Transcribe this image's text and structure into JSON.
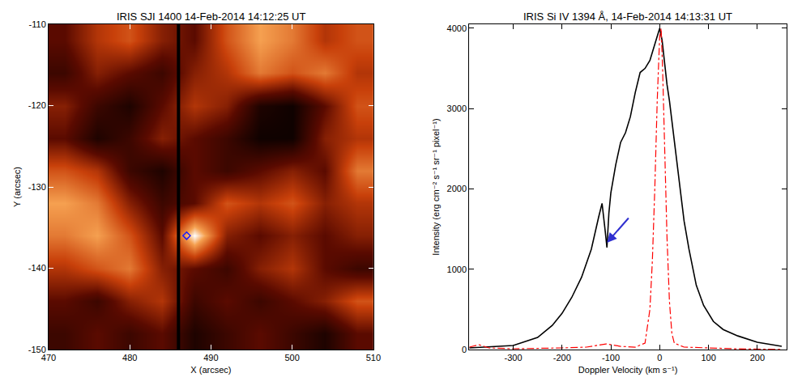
{
  "chart_data": [
    {
      "type": "heatmap",
      "title": "IRIS SJI 1400 14-Feb-2014 14:12:25 UT",
      "x_label": "X (arcsec)",
      "y_label": "Y (arcsec)",
      "xlim": [
        470,
        510
      ],
      "ylim": [
        -150,
        -110
      ],
      "xticks": [
        470,
        480,
        490,
        500,
        510
      ],
      "yticks": [
        -150,
        -140,
        -130,
        -120,
        -110
      ],
      "x": [
        472,
        476,
        480,
        484,
        488,
        492,
        496,
        500,
        504,
        508
      ],
      "y": [
        -148,
        -144,
        -140,
        -136,
        -132,
        -128,
        -124,
        -120,
        -116,
        -112
      ],
      "z": [
        [
          0.2,
          0.3,
          0.2,
          0.3,
          0.1,
          0.2,
          0.3,
          0.2,
          0.1,
          0.3
        ],
        [
          0.3,
          0.2,
          0.4,
          0.5,
          0.2,
          0.3,
          0.2,
          0.3,
          0.4,
          0.6
        ],
        [
          0.5,
          0.6,
          0.7,
          0.4,
          0.3,
          0.2,
          0.4,
          0.5,
          0.3,
          0.2
        ],
        [
          0.7,
          0.8,
          0.6,
          0.3,
          1.0,
          0.4,
          0.3,
          0.4,
          0.3,
          0.4
        ],
        [
          0.8,
          0.7,
          0.4,
          0.2,
          0.3,
          0.6,
          0.5,
          0.6,
          0.4,
          0.5
        ],
        [
          0.6,
          0.5,
          0.2,
          0.1,
          0.3,
          0.2,
          0.3,
          0.4,
          0.3,
          0.7
        ],
        [
          0.3,
          0.1,
          0.2,
          0.4,
          0.3,
          0.2,
          0.05,
          0.05,
          0.4,
          0.5
        ],
        [
          0.4,
          0.2,
          0.1,
          0.3,
          0.5,
          0.4,
          0.1,
          0.05,
          0.3,
          0.6
        ],
        [
          0.2,
          0.4,
          0.3,
          0.2,
          0.4,
          0.5,
          0.7,
          0.6,
          0.7,
          0.5
        ],
        [
          0.3,
          0.5,
          0.6,
          0.4,
          0.3,
          0.6,
          0.8,
          0.7,
          0.5,
          0.6
        ]
      ],
      "zlim": [
        0,
        1
      ],
      "slit_x": 486,
      "points": {
        "x": [
          487
        ],
        "y": [
          -136
        ],
        "color": "#1a1aff",
        "marker": "diamond-open"
      }
    },
    {
      "type": "line",
      "title": "IRIS Si IV 1394 Å, 14-Feb-2014 14:13:31 UT",
      "x_label": "Doppler Velocity (km s⁻¹)",
      "y_label": "Intensity (erg cm⁻² s⁻¹ sr⁻¹ pixel⁻¹)",
      "xlim": [
        -390,
        260
      ],
      "ylim": [
        0,
        4050
      ],
      "xticks": [
        -300,
        -200,
        -100,
        0,
        100,
        200
      ],
      "yticks": [
        0,
        1000,
        2000,
        3000,
        4000
      ],
      "series": [
        {
          "color": "#000000",
          "line_style": "solid",
          "x": [
            -390,
            -300,
            -250,
            -220,
            -200,
            -180,
            -160,
            -140,
            -125,
            -118,
            -112,
            -108,
            -104,
            -100,
            -90,
            -80,
            -70,
            -60,
            -50,
            -40,
            -30,
            -20,
            -10,
            0,
            5,
            10,
            15,
            20,
            30,
            40,
            50,
            60,
            75,
            90,
            110,
            130,
            160,
            200,
            250
          ],
          "values": [
            20,
            50,
            150,
            300,
            450,
            650,
            900,
            1250,
            1650,
            1820,
            1500,
            1270,
            1700,
            1950,
            2300,
            2580,
            2700,
            2900,
            3200,
            3450,
            3500,
            3600,
            3800,
            4000,
            3850,
            3550,
            3300,
            3100,
            2600,
            2050,
            1600,
            1250,
            800,
            550,
            350,
            250,
            170,
            90,
            40
          ]
        },
        {
          "color": "#ff0000",
          "line_style": "dashdot",
          "x": [
            -390,
            -370,
            -350,
            -300,
            -200,
            -150,
            -110,
            -80,
            -50,
            -30,
            -20,
            -15,
            -10,
            -5,
            0,
            3,
            6,
            10,
            15,
            20,
            25,
            30,
            50,
            100,
            150,
            250
          ],
          "values": [
            30,
            60,
            20,
            10,
            20,
            30,
            70,
            40,
            30,
            80,
            500,
            1100,
            2000,
            3100,
            3900,
            4000,
            3500,
            2500,
            1400,
            600,
            200,
            80,
            30,
            20,
            10,
            0
          ]
        }
      ]
    }
  ]
}
